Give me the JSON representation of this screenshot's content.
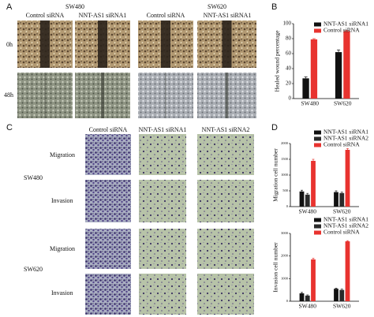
{
  "panels": {
    "a": "A",
    "b": "B",
    "c": "C",
    "d": "D"
  },
  "wound_images": {
    "cell_lines": [
      "SW480",
      "SW620"
    ],
    "columns": [
      "Control siRNA",
      "NNT-AS1 siRNA1",
      "Control siRNA",
      "NNT-AS1 siRNA1"
    ],
    "rows": [
      "0h",
      "48h"
    ]
  },
  "transwell_images": {
    "columns": [
      "Control siRNA",
      "NNT-AS1 siRNA1",
      "NNT-AS1 siRNA2"
    ],
    "cell_lines": [
      "SW480",
      "SW620"
    ],
    "assays": [
      "Migration",
      "Invasion",
      "Migration",
      "Invasion"
    ]
  },
  "chart_data": [
    {
      "type": "bar",
      "ylabel": "Healed wound percentage",
      "categories": [
        "SW480",
        "SW620"
      ],
      "series": [
        {
          "name": "NNT-AS1 siRNA1",
          "color": "#111111",
          "values": [
            27,
            62
          ],
          "errors": [
            2,
            3
          ]
        },
        {
          "name": "Control siRNA",
          "color": "#e8332f",
          "values": [
            79,
            90
          ],
          "errors": [
            1,
            1
          ]
        }
      ],
      "ylim": [
        0,
        100
      ],
      "yticks": [
        0,
        20,
        40,
        60,
        80,
        100
      ],
      "legend": "upper right"
    },
    {
      "type": "bar",
      "ylabel": "Migration cell number",
      "categories": [
        "SW480",
        "SW620"
      ],
      "series": [
        {
          "name": "NNT-AS1 siRNA1",
          "color": "#111111",
          "values": [
            480,
            460
          ],
          "errors": [
            40,
            40
          ]
        },
        {
          "name": "NNT-AS1 siRNA2",
          "color": "#2a2a2a",
          "values": [
            380,
            430
          ],
          "errors": [
            40,
            30
          ]
        },
        {
          "name": "Control siRNA",
          "color": "#e8332f",
          "values": [
            1450,
            1800
          ],
          "errors": [
            50,
            40
          ]
        }
      ],
      "ylim": [
        0,
        2000
      ],
      "yticks": [
        0,
        500,
        1000,
        1500,
        2000
      ],
      "legend": "upper right"
    },
    {
      "type": "bar",
      "ylabel": "Invasion cell number",
      "categories": [
        "SW480",
        "SW620"
      ],
      "series": [
        {
          "name": "NNT-AS1 siRNA1",
          "color": "#111111",
          "values": [
            350,
            550
          ],
          "errors": [
            40,
            30
          ]
        },
        {
          "name": "NNT-AS1 siRNA2",
          "color": "#2a2a2a",
          "values": [
            250,
            500
          ],
          "errors": [
            30,
            40
          ]
        },
        {
          "name": "Control siRNA",
          "color": "#e8332f",
          "values": [
            1850,
            2650
          ],
          "errors": [
            50,
            30
          ]
        }
      ],
      "ylim": [
        0,
        3000
      ],
      "yticks": [
        0,
        1000,
        2000,
        3000
      ],
      "legend": "upper right"
    }
  ]
}
